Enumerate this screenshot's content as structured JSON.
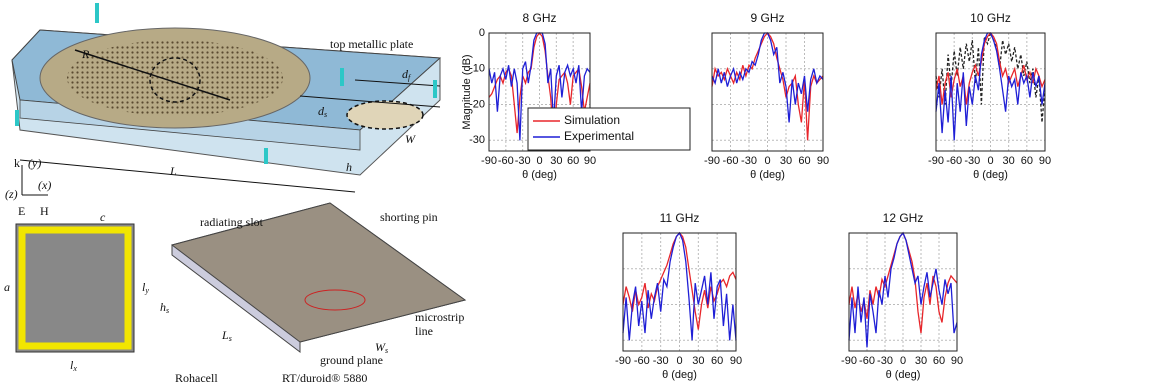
{
  "diagram": {
    "labels": {
      "top_plate": "top metallic plate",
      "R": "R",
      "d_f": {
        "base": "d",
        "sub": "f"
      },
      "d_s": {
        "base": "d",
        "sub": "s"
      },
      "W": "W",
      "L": "L",
      "h": "h",
      "k": "k",
      "y": "(y)",
      "z": "(z)",
      "x": "(x)",
      "E": "E",
      "H": "H",
      "c": "c",
      "a": "a",
      "l_y": {
        "base": "l",
        "sub": "y"
      },
      "l_x": {
        "base": "l",
        "sub": "x"
      },
      "radiating_slot": "radiating slot",
      "shorting_pin": "shorting pin",
      "h_s": {
        "base": "h",
        "sub": "s"
      },
      "microstrip": "microstrip",
      "line": "line",
      "L_s": {
        "base": "L",
        "sub": "s"
      },
      "W_s": {
        "base": "W",
        "sub": "s"
      },
      "ground_plane": "ground plane",
      "rohacell": "Rohacell",
      "duroid": "RT/duroid® 5880"
    }
  },
  "chart_data": [
    {
      "type": "line",
      "title": "8 GHz",
      "xlabel": "θ (deg)",
      "ylabel": "Magnitude (dB)",
      "x": [
        -90,
        -85,
        -80,
        -75,
        -70,
        -65,
        -60,
        -55,
        -50,
        -45,
        -40,
        -35,
        -30,
        -25,
        -20,
        -15,
        -10,
        -5,
        0,
        5,
        10,
        15,
        20,
        25,
        30,
        35,
        40,
        45,
        50,
        55,
        60,
        65,
        70,
        75,
        80,
        85,
        90
      ],
      "xlim": [
        -90,
        90
      ],
      "xticks": [
        -90,
        -60,
        -30,
        0,
        30,
        60,
        90
      ],
      "ylim": [
        -33,
        0
      ],
      "yticks": [
        0,
        -10,
        -20,
        -30
      ],
      "show_ytick_labels": true,
      "grid": true,
      "legend": "lower left",
      "series": [
        {
          "name": "Simulation",
          "color": "#e8262b",
          "values": [
            -18,
            -17,
            -15,
            -13,
            -12,
            -14,
            -11,
            -10,
            -12,
            -20,
            -28,
            -18,
            -12,
            -14,
            -11,
            -10,
            -4,
            -1,
            0,
            -1,
            -5,
            -12,
            -18,
            -30,
            -20,
            -13,
            -12,
            -11,
            -14,
            -20,
            -12,
            -11,
            -10,
            -15,
            -22,
            -18,
            -14
          ]
        },
        {
          "name": "Experimental",
          "color": "#1f1fd6",
          "values": [
            -10,
            -14,
            -11,
            -22,
            -12,
            -10,
            -13,
            -9,
            -15,
            -10,
            -14,
            -30,
            -10,
            -8,
            -14,
            -9,
            -2,
            0,
            0,
            0,
            -3,
            -14,
            -10,
            -25,
            -12,
            -9,
            -18,
            -11,
            -9,
            -12,
            -10,
            -14,
            -9,
            -22,
            -12,
            -10,
            -11
          ]
        }
      ]
    },
    {
      "type": "line",
      "title": "9 GHz",
      "xlabel": "θ (deg)",
      "x": [
        -90,
        -85,
        -80,
        -75,
        -70,
        -65,
        -60,
        -55,
        -50,
        -45,
        -40,
        -35,
        -30,
        -25,
        -20,
        -15,
        -10,
        -5,
        0,
        5,
        10,
        15,
        20,
        25,
        30,
        35,
        40,
        45,
        50,
        55,
        60,
        65,
        70,
        75,
        80,
        85,
        90
      ],
      "xlim": [
        -90,
        90
      ],
      "xticks": [
        -90,
        -60,
        -30,
        0,
        30,
        60,
        90
      ],
      "ylim": [
        -33,
        0
      ],
      "yticks": [
        0,
        -10,
        -20,
        -30
      ],
      "show_ytick_labels": false,
      "grid": true,
      "series": [
        {
          "color": "#e8262b",
          "values": [
            -15,
            -10,
            -12,
            -11,
            -13,
            -10,
            -12,
            -14,
            -11,
            -13,
            -9,
            -12,
            -9,
            -10,
            -7,
            -5,
            -3,
            -1,
            0,
            -1,
            -3,
            -7,
            -10,
            -13,
            -18,
            -15,
            -14,
            -12,
            -20,
            -25,
            -13,
            -30,
            -15,
            -12,
            -14,
            -13,
            -12
          ]
        },
        {
          "color": "#1f1fd6",
          "values": [
            -12,
            -14,
            -10,
            -14,
            -11,
            -15,
            -12,
            -10,
            -14,
            -11,
            -13,
            -10,
            -11,
            -8,
            -9,
            -6,
            -2,
            0,
            0,
            -2,
            -6,
            -4,
            -14,
            -11,
            -15,
            -25,
            -13,
            -20,
            -14,
            -17,
            -12,
            -22,
            -13,
            -10,
            -14,
            -12,
            -13
          ]
        }
      ]
    },
    {
      "type": "line",
      "title": "10 GHz",
      "xlabel": "θ (deg)",
      "x": [
        -90,
        -85,
        -80,
        -75,
        -70,
        -65,
        -60,
        -55,
        -50,
        -45,
        -40,
        -35,
        -30,
        -25,
        -20,
        -15,
        -10,
        -5,
        0,
        5,
        10,
        15,
        20,
        25,
        30,
        35,
        40,
        45,
        50,
        55,
        60,
        65,
        70,
        75,
        80,
        85,
        90
      ],
      "xlim": [
        -90,
        90
      ],
      "xticks": [
        -90,
        -60,
        -30,
        0,
        30,
        60,
        90
      ],
      "ylim": [
        -33,
        0
      ],
      "yticks": [
        0,
        -10,
        -20,
        -30
      ],
      "show_ytick_labels": false,
      "grid": true,
      "series": [
        {
          "color": "#222222",
          "dashed": true,
          "values": [
            -12,
            -18,
            -10,
            -20,
            -6,
            -15,
            -5,
            -12,
            -4,
            -10,
            -3,
            -8,
            -2,
            -14,
            -4,
            -20,
            -1,
            -3,
            0,
            -2,
            -4,
            -10,
            -2,
            -6,
            -3,
            -8,
            -4,
            -10,
            -6,
            -12,
            -8,
            -14,
            -10,
            -18,
            -12,
            -25,
            -15
          ]
        },
        {
          "color": "#e8262b",
          "values": [
            -16,
            -12,
            -20,
            -14,
            -11,
            -18,
            -13,
            -10,
            -15,
            -12,
            -20,
            -14,
            -11,
            -9,
            -12,
            -8,
            -3,
            -1,
            0,
            -1,
            -3,
            -8,
            -12,
            -10,
            -14,
            -12,
            -10,
            -15,
            -12,
            -9,
            -13,
            -11,
            -14,
            -10,
            -12,
            -15,
            -13
          ]
        },
        {
          "color": "#1f1fd6",
          "values": [
            -22,
            -14,
            -28,
            -16,
            -25,
            -12,
            -30,
            -14,
            -22,
            -11,
            -26,
            -15,
            -20,
            -12,
            -16,
            -6,
            -2,
            0,
            0,
            -2,
            -5,
            -10,
            -16,
            -22,
            -12,
            -15,
            -13,
            -20,
            -11,
            -14,
            -12,
            -18,
            -11,
            -15,
            -12,
            -20,
            -14
          ]
        }
      ]
    },
    {
      "type": "line",
      "title": "11 GHz",
      "xlabel": "θ (deg)",
      "x": [
        -90,
        -85,
        -80,
        -75,
        -70,
        -65,
        -60,
        -55,
        -50,
        -45,
        -40,
        -35,
        -30,
        -25,
        -20,
        -15,
        -10,
        -5,
        0,
        5,
        10,
        15,
        20,
        25,
        30,
        35,
        40,
        45,
        50,
        55,
        60,
        65,
        70,
        75,
        80,
        85,
        90
      ],
      "xlim": [
        -90,
        90
      ],
      "xticks": [
        -90,
        -60,
        -30,
        0,
        30,
        60,
        90
      ],
      "ylim": [
        -33,
        0
      ],
      "yticks": [
        0,
        -10,
        -20,
        -30
      ],
      "show_ytick_labels": false,
      "grid": true,
      "series": [
        {
          "color": "#e8262b",
          "values": [
            -20,
            -15,
            -18,
            -22,
            -16,
            -20,
            -18,
            -14,
            -21,
            -17,
            -19,
            -15,
            -13,
            -11,
            -9,
            -6,
            -3,
            -1,
            0,
            -1,
            -4,
            -10,
            -16,
            -22,
            -27,
            -20,
            -16,
            -21,
            -15,
            -19,
            -17,
            -14,
            -13,
            -15,
            -12,
            -11,
            -13
          ]
        },
        {
          "color": "#1f1fd6",
          "values": [
            -28,
            -18,
            -30,
            -20,
            -15,
            -26,
            -19,
            -28,
            -16,
            -24,
            -18,
            -14,
            -22,
            -13,
            -15,
            -8,
            -4,
            -1,
            0,
            -2,
            -8,
            -18,
            -30,
            -14,
            -20,
            -16,
            -12,
            -20,
            -11,
            -24,
            -15,
            -13,
            -26,
            -17,
            -30,
            -20,
            -30
          ]
        }
      ]
    },
    {
      "type": "line",
      "title": "12 GHz",
      "xlabel": "θ (deg)",
      "x": [
        -90,
        -85,
        -80,
        -75,
        -70,
        -65,
        -60,
        -55,
        -50,
        -45,
        -40,
        -35,
        -30,
        -25,
        -20,
        -15,
        -10,
        -5,
        0,
        5,
        10,
        15,
        20,
        25,
        30,
        35,
        40,
        45,
        50,
        55,
        60,
        65,
        70,
        75,
        80,
        85,
        90
      ],
      "xlim": [
        -90,
        90
      ],
      "xticks": [
        -90,
        -60,
        -30,
        0,
        30,
        60,
        90
      ],
      "ylim": [
        -33,
        0
      ],
      "yticks": [
        0,
        -10,
        -20,
        -30
      ],
      "show_ytick_labels": false,
      "grid": true,
      "series": [
        {
          "color": "#e8262b",
          "values": [
            -20,
            -15,
            -21,
            -17,
            -22,
            -19,
            -24,
            -16,
            -20,
            -15,
            -18,
            -13,
            -15,
            -12,
            -9,
            -6,
            -3,
            -1,
            0,
            -2,
            -5,
            -8,
            -13,
            -22,
            -28,
            -18,
            -14,
            -20,
            -12,
            -15,
            -22,
            -25,
            -18,
            -14,
            -12,
            -13,
            -14
          ]
        },
        {
          "color": "#1f1fd6",
          "values": [
            -30,
            -18,
            -28,
            -15,
            -25,
            -18,
            -32,
            -17,
            -22,
            -28,
            -16,
            -20,
            -12,
            -18,
            -10,
            -7,
            -3,
            -1,
            0,
            -2,
            -6,
            -10,
            -14,
            -12,
            -20,
            -15,
            -11,
            -18,
            -14,
            -10,
            -16,
            -20,
            -13,
            -17,
            -14,
            -28,
            -25
          ]
        }
      ]
    }
  ]
}
